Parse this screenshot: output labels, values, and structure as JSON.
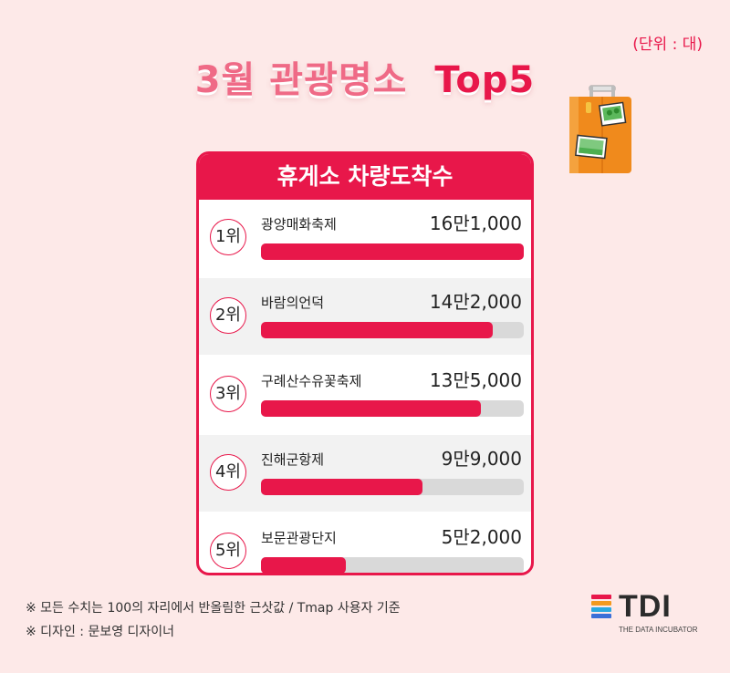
{
  "unit_label": "(단위 : 대)",
  "title_main": "3월 관광명소",
  "title_accent": "Top5",
  "card_title": "휴게소 차량도착수",
  "chart_data": {
    "type": "bar",
    "title": "휴게소 차량도착수",
    "unit": "대",
    "categories": [
      "광양매화축제",
      "바람의언덕",
      "구례산수유꽃축제",
      "진해군항제",
      "보문관광단지"
    ],
    "ranks": [
      "1위",
      "2위",
      "3위",
      "4위",
      "5위"
    ],
    "values": [
      161000,
      142000,
      135000,
      99000,
      52000
    ],
    "value_labels": [
      "16만1,000",
      "14만2,000",
      "13만5,000",
      "9만9,000",
      "5만2,000"
    ],
    "xlim": [
      0,
      161000
    ]
  },
  "notes": [
    "※ 모든 수치는 100의 자리에서 반올림한 근삿값 / Tmap 사용자 기준",
    "※ 디자인 : 문보영 디자이너"
  ],
  "logo": {
    "text": "TDI",
    "subtitle": "THE DATA INCUBATOR"
  },
  "colors": {
    "accent": "#e8174a",
    "background": "#fde9e8",
    "track": "#d9d9d9",
    "logo_stripes": [
      "#e8174a",
      "#f39a1f",
      "#2aa9e0",
      "#3a6fd8"
    ]
  },
  "icons": [
    "suitcase-icon"
  ]
}
